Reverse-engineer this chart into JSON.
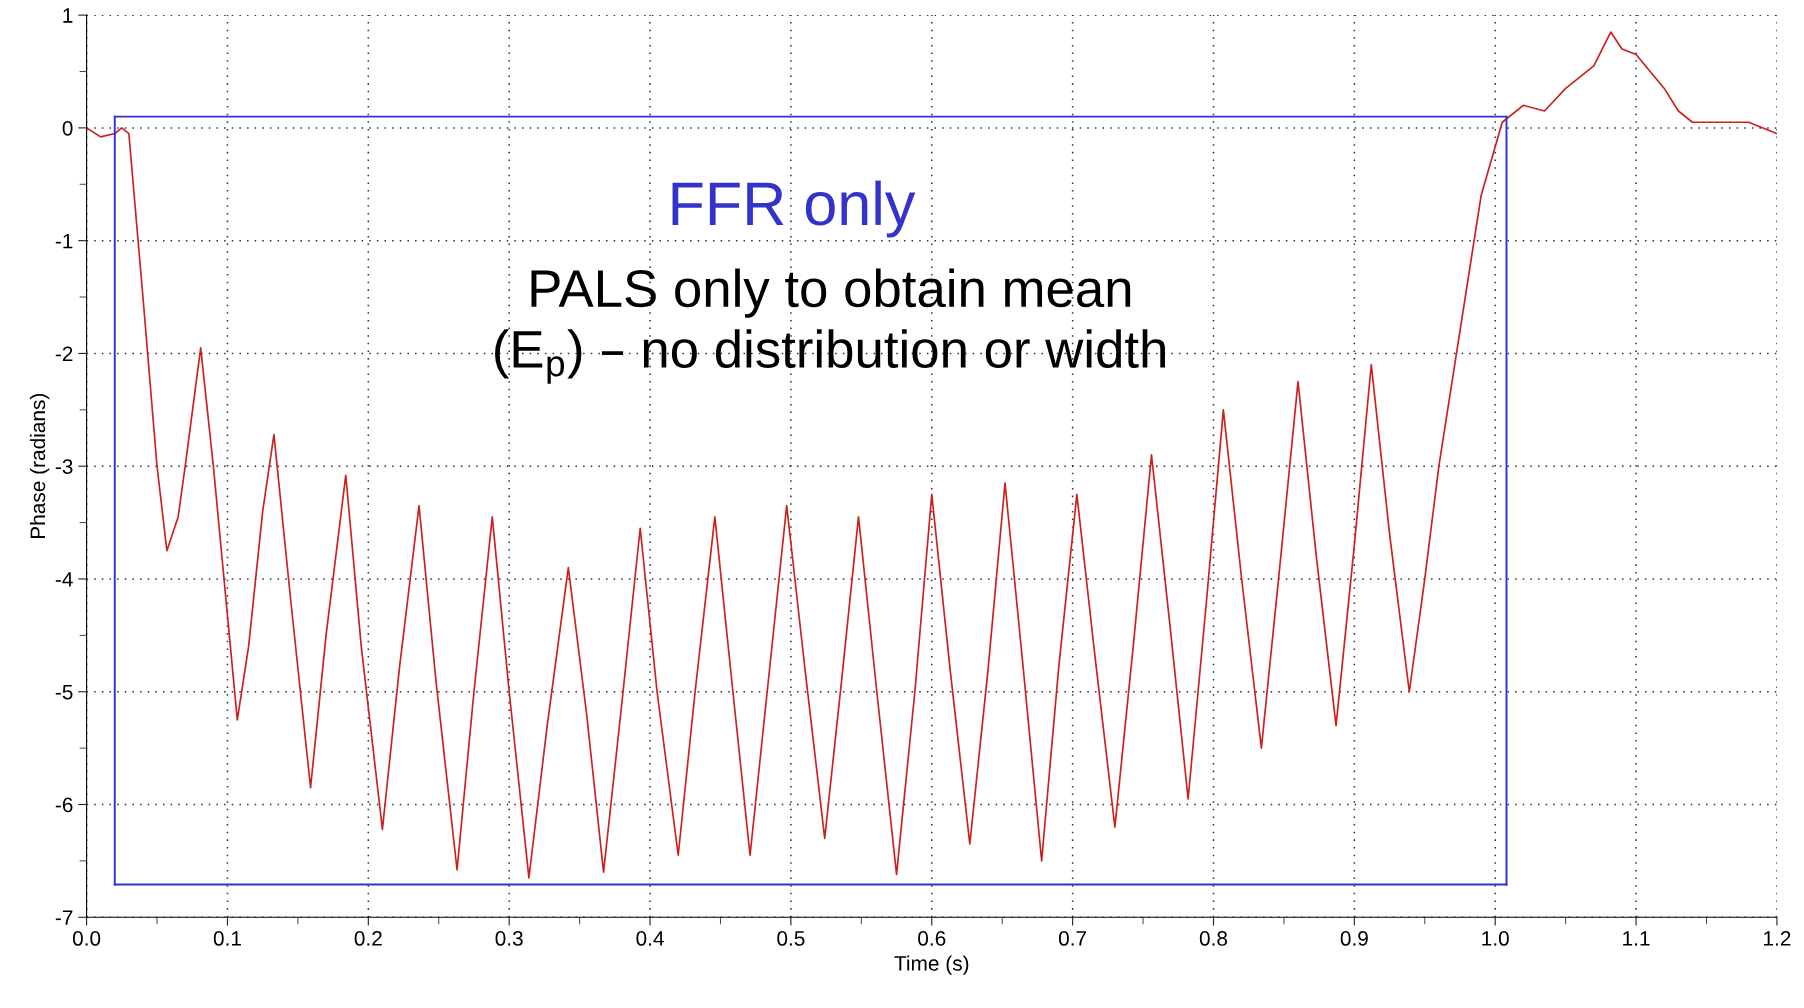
{
  "chart_data": {
    "type": "line",
    "xlabel": "Time (s)",
    "ylabel": "Phase (radians)",
    "annotations": [
      "FFR only",
      "PALS only to obtain mean\n(E$_{p}$) – no distribution or width"
    ],
    "series": [
      {
        "color": "#cc2020",
        "x": [
          0,
          0.01,
          0.02,
          0.025,
          0.03,
          0.04,
          0.05,
          0.057,
          0.065,
          0.07,
          0.081,
          0.09,
          0.107,
          0.115,
          0.125,
          0.133,
          0.145,
          0.159,
          0.17,
          0.184,
          0.195,
          0.21,
          0.222,
          0.236,
          0.248,
          0.263,
          0.275,
          0.288,
          0.3,
          0.314,
          0.327,
          0.342,
          0.355,
          0.367,
          0.38,
          0.393,
          0.405,
          0.42,
          0.432,
          0.446,
          0.458,
          0.471,
          0.484,
          0.497,
          0.51,
          0.524,
          0.536,
          0.548,
          0.561,
          0.575,
          0.588,
          0.6,
          0.613,
          0.627,
          0.64,
          0.652,
          0.665,
          0.678,
          0.69,
          0.703,
          0.716,
          0.73,
          0.743,
          0.756,
          0.769,
          0.782,
          0.795,
          0.807,
          0.82,
          0.834,
          0.847,
          0.86,
          0.873,
          0.887,
          0.9,
          0.912,
          0.925,
          0.939,
          0.95,
          0.96,
          0.975,
          0.99,
          1.005,
          1.02,
          1.035,
          1.05,
          1.07,
          1.082,
          1.09,
          1.1,
          1.12,
          1.13,
          1.14,
          1.16,
          1.18,
          1.2
        ],
        "values": [
          0,
          -0.08,
          -0.05,
          0.0,
          -0.05,
          -1.5,
          -3.0,
          -3.75,
          -3.45,
          -3.0,
          -1.95,
          -3.0,
          -5.25,
          -4.6,
          -3.4,
          -2.72,
          -4.2,
          -5.85,
          -4.5,
          -3.08,
          -4.6,
          -6.22,
          -4.8,
          -3.35,
          -4.9,
          -6.58,
          -5.0,
          -3.45,
          -5.0,
          -6.65,
          -5.3,
          -3.9,
          -5.2,
          -6.6,
          -5.1,
          -3.55,
          -5.0,
          -6.45,
          -5.0,
          -3.45,
          -4.9,
          -6.45,
          -4.9,
          -3.35,
          -4.8,
          -6.3,
          -4.9,
          -3.45,
          -5.0,
          -6.62,
          -5.0,
          -3.25,
          -4.8,
          -6.35,
          -4.8,
          -3.15,
          -4.8,
          -6.5,
          -4.8,
          -3.25,
          -4.7,
          -6.2,
          -4.6,
          -2.9,
          -4.4,
          -5.95,
          -4.2,
          -2.5,
          -4.0,
          -5.5,
          -3.9,
          -2.25,
          -3.8,
          -5.3,
          -3.7,
          -2.1,
          -3.6,
          -5.0,
          -4.0,
          -3.0,
          -1.8,
          -0.6,
          0.05,
          0.2,
          0.15,
          0.35,
          0.55,
          0.85,
          0.7,
          0.65,
          0.35,
          0.15,
          0.05,
          0.05,
          0.05,
          -0.05
        ]
      },
      {
        "color": "#3333cc",
        "x": [
          0.02,
          1.008
        ],
        "values": [
          0.1,
          0.1
        ]
      },
      {
        "color": "#3333cc",
        "x": [
          0.02,
          1.008
        ],
        "values": [
          -6.71,
          -6.71
        ]
      },
      {
        "color": "#3333cc",
        "x": [
          0.02,
          0.02
        ],
        "values": [
          0.1,
          -6.71
        ]
      },
      {
        "color": "#3333cc",
        "x": [
          1.008,
          1.008
        ],
        "values": [
          0.1,
          -6.71
        ]
      }
    ],
    "xlim": [
      0,
      1.2
    ],
    "xticks": [
      {
        "value": 0,
        "label": "0.0"
      },
      {
        "value": 0.05,
        "label": null
      },
      0.1,
      {
        "value": 0.15,
        "label": null
      },
      0.2,
      {
        "value": 0.25,
        "label": null
      },
      0.3,
      {
        "value": 0.35,
        "label": null
      },
      0.4,
      {
        "value": 0.45,
        "label": null
      },
      0.5,
      {
        "value": 0.55,
        "label": null
      },
      0.6,
      {
        "value": 0.65,
        "label": null
      },
      0.7,
      {
        "value": 0.75,
        "label": null
      },
      0.8,
      {
        "value": 0.85,
        "label": null
      },
      0.9,
      {
        "value": 0.95,
        "label": null
      },
      {
        "value": 1,
        "label": "1.0"
      },
      {
        "value": 1.05,
        "label": null
      },
      1.1,
      {
        "value": 1.15,
        "label": null
      },
      1.2
    ],
    "ylim": [
      -7,
      1
    ],
    "yticks": [
      -7,
      {
        "value": -6.5,
        "label": null
      },
      -6,
      {
        "value": -5.5,
        "label": null
      },
      -5,
      {
        "value": -4.5,
        "label": null
      },
      -4,
      {
        "value": -3.5,
        "label": null
      },
      -3,
      {
        "value": -2.5,
        "label": null
      },
      -2,
      {
        "value": -1.5,
        "label": null
      },
      -1,
      {
        "value": -0.5,
        "label": null
      },
      0,
      {
        "value": 0.5,
        "label": null
      },
      1
    ],
    "grid": true,
    "legend": false
  }
}
